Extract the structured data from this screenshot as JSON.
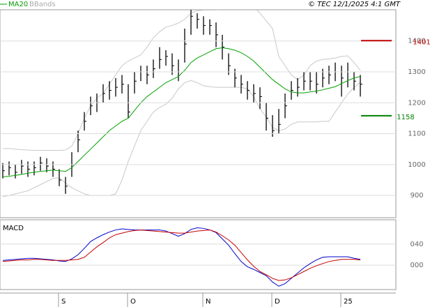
{
  "header": {
    "legend_note": "© TEC 12/1/2025 4:1 GMT"
  },
  "chart_data": [
    {
      "type": "hlc",
      "categories": [
        null,
        null,
        null,
        null,
        null,
        null,
        null,
        null,
        null,
        "S",
        null,
        null,
        null,
        null,
        null,
        null,
        null,
        null,
        null,
        null,
        "O",
        null,
        null,
        null,
        null,
        null,
        null,
        null,
        null,
        null,
        null,
        null,
        "N",
        null,
        null,
        null,
        null,
        null,
        null,
        null,
        null,
        null,
        null,
        "D",
        null,
        null,
        null,
        null,
        null,
        null,
        null,
        null,
        null,
        null,
        "25",
        null,
        null,
        null
      ],
      "high": [
        1005,
        1010,
        1000,
        1015,
        1010,
        1010,
        1025,
        1020,
        1010,
        985,
        960,
        1040,
        1110,
        1170,
        1220,
        1230,
        1260,
        1270,
        1280,
        1290,
        1260,
        1300,
        1320,
        1320,
        1340,
        1380,
        1370,
        1360,
        1340,
        1440,
        1510,
        1490,
        1480,
        1470,
        1460,
        1420,
        1360,
        1310,
        1290,
        1270,
        1260,
        1250,
        1200,
        1160,
        1180,
        1230,
        1270,
        1280,
        1300,
        1300,
        1300,
        1310,
        1320,
        1330,
        1320,
        1330,
        1300,
        1290
      ],
      "low": [
        955,
        965,
        955,
        970,
        960,
        965,
        980,
        975,
        960,
        930,
        905,
        960,
        1040,
        1110,
        1160,
        1170,
        1200,
        1210,
        1220,
        1230,
        1150,
        1230,
        1270,
        1260,
        1280,
        1310,
        1320,
        1290,
        1270,
        1330,
        1420,
        1440,
        1420,
        1420,
        1380,
        1340,
        1290,
        1250,
        1230,
        1210,
        1200,
        1180,
        1110,
        1090,
        1100,
        1150,
        1210,
        1220,
        1240,
        1240,
        1230,
        1250,
        1260,
        1270,
        1220,
        1250,
        1240,
        1220
      ],
      "close": [
        980,
        990,
        975,
        995,
        985,
        990,
        1005,
        995,
        985,
        950,
        930,
        1000,
        1080,
        1140,
        1190,
        1200,
        1230,
        1240,
        1250,
        1260,
        1170,
        1270,
        1300,
        1290,
        1310,
        1340,
        1350,
        1320,
        1300,
        1390,
        1480,
        1470,
        1450,
        1450,
        1420,
        1380,
        1320,
        1280,
        1260,
        1240,
        1230,
        1220,
        1150,
        1110,
        1130,
        1190,
        1240,
        1250,
        1270,
        1270,
        1260,
        1280,
        1290,
        1300,
        1280,
        1300,
        1270,
        1260
      ],
      "color": "#000000",
      "series": [
        {
          "name": "MA20",
          "color": "#00a000",
          "values": [
            960,
            962,
            965,
            968,
            972,
            975,
            978,
            980,
            982,
            980,
            978,
            990,
            1010,
            1030,
            1050,
            1070,
            1090,
            1110,
            1125,
            1140,
            1150,
            1175,
            1200,
            1220,
            1235,
            1250,
            1265,
            1275,
            1285,
            1305,
            1330,
            1345,
            1355,
            1365,
            1375,
            1378,
            1375,
            1370,
            1362,
            1350,
            1335,
            1315,
            1295,
            1275,
            1260,
            1245,
            1235,
            1232,
            1232,
            1235,
            1238,
            1242,
            1247,
            1252,
            1262,
            1272,
            1280,
            1285
          ]
        },
        {
          "name": "BBands",
          "color": "#c8c8c8",
          "upper": [
            1052,
            1052,
            1050,
            1048,
            1047,
            1046,
            1046,
            1046,
            1046,
            1046,
            1047,
            1060,
            1100,
            1150,
            1190,
            1215,
            1230,
            1260,
            1290,
            1320,
            1335,
            1345,
            1355,
            1380,
            1410,
            1430,
            1445,
            1450,
            1458,
            1470,
            1490,
            1498,
            1500,
            1500,
            1500,
            1505,
            1508,
            1510,
            1510,
            1510,
            1510,
            1490,
            1465,
            1440,
            1350,
            1320,
            1290,
            1275,
            1290,
            1320,
            1335,
            1340,
            1342,
            1345,
            1350,
            1352,
            1330,
            1305
          ],
          "lower": [
            896,
            900,
            905,
            910,
            915,
            925,
            935,
            945,
            955,
            957,
            940,
            925,
            915,
            905,
            900,
            900,
            900,
            900,
            905,
            950,
            1010,
            1060,
            1110,
            1140,
            1170,
            1185,
            1195,
            1215,
            1245,
            1265,
            1272,
            1265,
            1255,
            1252,
            1250,
            1250,
            1250,
            1250,
            1250,
            1245,
            1220,
            1180,
            1155,
            1120,
            1110,
            1115,
            1130,
            1138,
            1138,
            1138,
            1138,
            1140,
            1140,
            1170,
            1200,
            1228,
            1250,
            1266
          ]
        }
      ],
      "ylim": [
        828,
        1501
      ],
      "yticks": [
        900,
        1000,
        1100,
        1200,
        1300,
        1400
      ],
      "grid": true,
      "levels": [
        {
          "value": 1401,
          "color": "#c00000"
        },
        {
          "value": 1158,
          "color": "#008000"
        }
      ]
    },
    {
      "type": "line",
      "title": "MACD",
      "series": [
        {
          "color": "#0000c8",
          "values": [
            9,
            10,
            11,
            12,
            13,
            13,
            12,
            11,
            10,
            8,
            7,
            12,
            20,
            32,
            45,
            52,
            58,
            63,
            67,
            69,
            68,
            67,
            67,
            67,
            67,
            67,
            65,
            60,
            55,
            60,
            68,
            71,
            70,
            67,
            62,
            50,
            38,
            22,
            7,
            -3,
            -8,
            -14,
            -20,
            -32,
            -40,
            -35,
            -25,
            -15,
            -5,
            3,
            10,
            15,
            16,
            16,
            16,
            16,
            13,
            11
          ]
        },
        {
          "color": "#c80000",
          "values": [
            7,
            8,
            9,
            10,
            10,
            11,
            11,
            10,
            9,
            9,
            9,
            10,
            11,
            15,
            25,
            35,
            43,
            52,
            58,
            61,
            64,
            66,
            67,
            66,
            65,
            64,
            63,
            62,
            61,
            61,
            63,
            65,
            66,
            67,
            63,
            56,
            48,
            38,
            24,
            10,
            -2,
            -12,
            -18,
            -25,
            -29,
            -28,
            -24,
            -18,
            -12,
            -6,
            -1,
            3,
            7,
            9,
            11,
            11,
            11,
            10
          ]
        }
      ],
      "ylim": [
        -45,
        85
      ],
      "yticks": [
        {
          "value": 40,
          "label": "040"
        },
        {
          "value": 0,
          "label": "000"
        }
      ],
      "grid": true
    }
  ]
}
